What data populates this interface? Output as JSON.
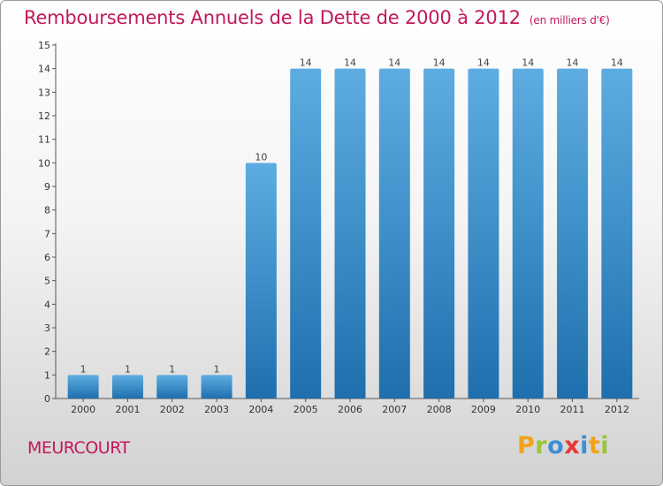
{
  "header": {
    "title": "Remboursements Annuels de la Dette de 2000 à 2012",
    "subtitle": "(en milliers d'€)"
  },
  "footer": {
    "city": "MEURCOURT",
    "brand": {
      "p": "P",
      "r": "r",
      "o": "o",
      "x": "x",
      "i1": "i",
      "t": "t",
      "i2": "i"
    }
  },
  "colors": {
    "bar_light": "#5dade2",
    "bar_dark": "#1f6fae",
    "title": "#c2185b"
  },
  "chart_data": {
    "type": "bar",
    "title": "Remboursements Annuels de la Dette de 2000 à 2012",
    "subtitle": "(en milliers d'€)",
    "xlabel": "",
    "ylabel": "",
    "categories": [
      "2000",
      "2001",
      "2002",
      "2003",
      "2004",
      "2005",
      "2006",
      "2007",
      "2008",
      "2009",
      "2010",
      "2011",
      "2012"
    ],
    "values": [
      1,
      1,
      1,
      1,
      10,
      14,
      14,
      14,
      14,
      14,
      14,
      14,
      14
    ],
    "ylim": [
      0,
      15
    ],
    "yticks": [
      0,
      1,
      2,
      3,
      4,
      5,
      6,
      7,
      8,
      9,
      10,
      11,
      12,
      13,
      14,
      15
    ],
    "grid": false,
    "legend": "none"
  }
}
